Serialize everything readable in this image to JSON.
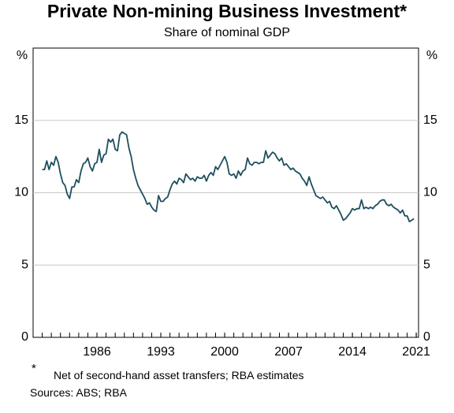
{
  "chart_data": {
    "type": "line",
    "title": "Private Non-mining Business Investment*",
    "subtitle": "Share of nominal GDP",
    "y_unit": "%",
    "footnote_marker": "*",
    "footnote": "Net of second-hand asset transfers; RBA estimates",
    "sources": "Sources: ABS; RBA",
    "xlim": [
      1979,
      2021.25
    ],
    "xticks": [
      1986,
      1993,
      2000,
      2007,
      2014,
      2021
    ],
    "ylim": [
      0,
      20
    ],
    "yticks": [
      0,
      5,
      10,
      15
    ],
    "grid": true,
    "series": [
      {
        "color": "#1d4f5e",
        "x": [
          1980,
          1980.25,
          1980.5,
          1980.75,
          1981,
          1981.25,
          1981.5,
          1981.75,
          1982,
          1982.25,
          1982.5,
          1982.75,
          1983,
          1983.25,
          1983.5,
          1983.75,
          1984,
          1984.25,
          1984.5,
          1984.75,
          1985,
          1985.25,
          1985.5,
          1985.75,
          1986,
          1986.25,
          1986.5,
          1986.75,
          1987,
          1987.25,
          1987.5,
          1987.75,
          1988,
          1988.25,
          1988.5,
          1988.75,
          1989,
          1989.25,
          1989.5,
          1989.75,
          1990,
          1990.25,
          1990.5,
          1990.75,
          1991,
          1991.25,
          1991.5,
          1991.75,
          1992,
          1992.25,
          1992.5,
          1992.75,
          1993,
          1993.25,
          1993.5,
          1993.75,
          1994,
          1994.25,
          1994.5,
          1994.75,
          1995,
          1995.25,
          1995.5,
          1995.75,
          1996,
          1996.25,
          1996.5,
          1996.75,
          1997,
          1997.25,
          1997.5,
          1997.75,
          1998,
          1998.25,
          1998.5,
          1998.75,
          1999,
          1999.25,
          1999.5,
          1999.75,
          2000,
          2000.25,
          2000.5,
          2000.75,
          2001,
          2001.25,
          2001.5,
          2001.75,
          2002,
          2002.25,
          2002.5,
          2002.75,
          2003,
          2003.25,
          2003.5,
          2003.75,
          2004,
          2004.25,
          2004.5,
          2004.75,
          2005,
          2005.25,
          2005.5,
          2005.75,
          2006,
          2006.25,
          2006.5,
          2006.75,
          2007,
          2007.25,
          2007.5,
          2007.75,
          2008,
          2008.25,
          2008.5,
          2008.75,
          2009,
          2009.25,
          2009.5,
          2009.75,
          2010,
          2010.25,
          2010.5,
          2010.75,
          2011,
          2011.25,
          2011.5,
          2011.75,
          2012,
          2012.25,
          2012.5,
          2012.75,
          2013,
          2013.25,
          2013.5,
          2013.75,
          2014,
          2014.25,
          2014.5,
          2014.75,
          2015,
          2015.25,
          2015.5,
          2015.75,
          2016,
          2016.25,
          2016.5,
          2016.75,
          2017,
          2017.25,
          2017.5,
          2017.75,
          2018,
          2018.25,
          2018.5,
          2018.75,
          2019,
          2019.25,
          2019.5,
          2019.75,
          2020,
          2020.25,
          2020.5,
          2020.75
        ],
        "values": [
          11.6,
          11.6,
          12.2,
          11.6,
          12.1,
          11.9,
          12.5,
          12.1,
          11.3,
          10.7,
          10.5,
          9.9,
          9.6,
          10.4,
          10.4,
          10.9,
          10.7,
          11.5,
          12.0,
          12.1,
          12.4,
          11.8,
          11.5,
          12.0,
          12.1,
          13.0,
          12.1,
          12.6,
          12.7,
          13.7,
          13.5,
          13.7,
          13.0,
          12.9,
          14.0,
          14.2,
          14.1,
          14.0,
          13.1,
          12.5,
          11.6,
          11.0,
          10.5,
          10.2,
          9.9,
          9.6,
          9.2,
          9.3,
          9.0,
          8.8,
          8.7,
          9.8,
          9.4,
          9.4,
          9.6,
          9.7,
          10.2,
          10.6,
          10.8,
          10.6,
          11.0,
          10.9,
          10.7,
          11.3,
          11.1,
          10.9,
          11.0,
          10.8,
          11.1,
          11.0,
          11.0,
          11.2,
          10.8,
          11.2,
          11.4,
          11.2,
          11.8,
          11.6,
          11.9,
          12.2,
          12.5,
          12.1,
          11.3,
          11.2,
          11.3,
          11.0,
          11.5,
          11.2,
          11.5,
          11.6,
          12.4,
          12.0,
          11.9,
          12.1,
          12.1,
          12.0,
          12.1,
          12.1,
          12.9,
          12.4,
          12.6,
          12.8,
          12.7,
          12.4,
          12.2,
          12.4,
          11.9,
          12.0,
          11.8,
          11.6,
          11.7,
          11.5,
          11.4,
          11.3,
          11.0,
          10.8,
          10.5,
          11.1,
          10.6,
          10.2,
          9.8,
          9.7,
          9.6,
          9.7,
          9.5,
          9.3,
          9.4,
          9.0,
          8.9,
          9.1,
          8.8,
          8.5,
          8.1,
          8.2,
          8.4,
          8.6,
          8.9,
          8.8,
          8.9,
          8.9,
          9.5,
          8.9,
          9.0,
          8.9,
          9.0,
          8.9,
          9.1,
          9.2,
          9.4,
          9.5,
          9.5,
          9.2,
          9.1,
          9.2,
          9.0,
          8.9,
          8.8,
          8.6,
          8.8,
          8.4,
          8.4,
          8.0,
          8.1,
          8.2
        ]
      }
    ]
  }
}
